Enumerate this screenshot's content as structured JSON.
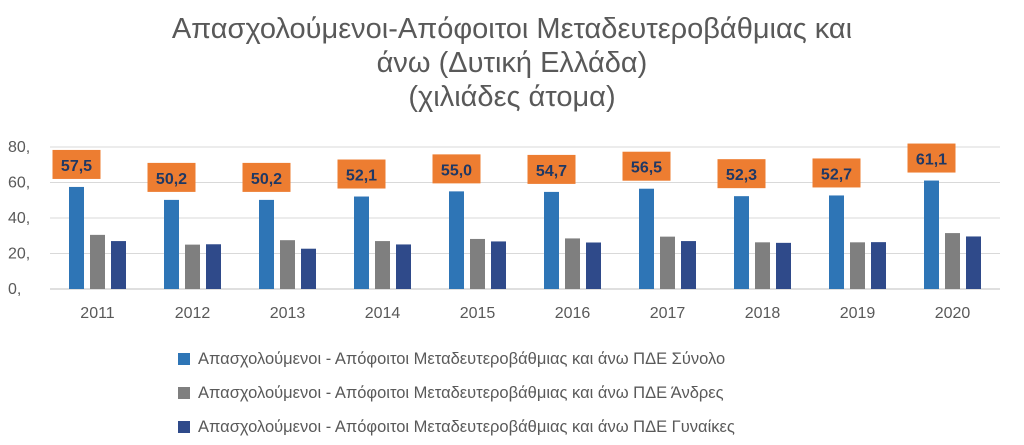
{
  "chart_data": {
    "type": "bar",
    "title_lines": [
      "Απασχολούμενοι-Απόφοιτοι Μεταδευτεροβάθμιας και",
      "άνω (Δυτική Ελλάδα)",
      "(χιλιάδες άτομα)"
    ],
    "categories": [
      "2011",
      "2012",
      "2013",
      "2014",
      "2015",
      "2016",
      "2017",
      "2018",
      "2019",
      "2020"
    ],
    "series": [
      {
        "name": "Απασχολούμενοι - Απόφοιτοι Μεταδευτεροβάθμιας και άνω ΠΔΕ Σύνολο",
        "values": [
          57.5,
          50.2,
          50.2,
          52.1,
          55.0,
          54.7,
          56.5,
          52.3,
          52.7,
          61.1
        ],
        "color": "#2E75B6"
      },
      {
        "name": "Απασχολούμενοι - Απόφοιτοι Μεταδευτεροβάθμιας και άνω ΠΔΕ Άνδρες",
        "values": [
          30.5,
          25.0,
          27.5,
          27.0,
          28.2,
          28.5,
          29.5,
          26.3,
          26.3,
          31.5
        ],
        "color": "#7F7F7F"
      },
      {
        "name": "Απασχολούμενοι - Απόφοιτοι Μεταδευτεροβάθμιας και άνω ΠΔΕ Γυναίκες",
        "values": [
          27.0,
          25.2,
          22.7,
          25.1,
          26.8,
          26.2,
          27.0,
          26.0,
          26.4,
          29.6
        ],
        "color": "#2F4A8A"
      }
    ],
    "data_labels": [
      "57,5",
      "50,2",
      "50,2",
      "52,1",
      "55,0",
      "54,7",
      "56,5",
      "52,3",
      "52,7",
      "61,1"
    ],
    "data_label_box_color": "#ED7D31",
    "data_label_text_color": "#1F3864",
    "ylim": [
      0,
      80
    ],
    "yticks": [
      0,
      20,
      40,
      60,
      80
    ],
    "ytick_labels": [
      "0,",
      "20,",
      "40,",
      "60,",
      "80,"
    ],
    "grid": true,
    "legend_position": "bottom"
  }
}
